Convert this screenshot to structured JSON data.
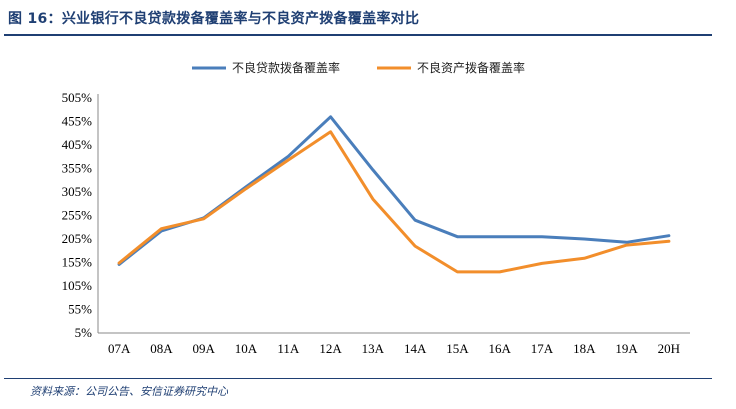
{
  "figure": {
    "title": "图 16：兴业银行不良贷款拨备覆盖率与不良资产拨备覆盖率对比",
    "source": "资料来源：公司公告、安信证券研究中心"
  },
  "colors": {
    "series1": "#4a7ebb",
    "series2": "#f28e2b",
    "rule": "#1f3f73"
  },
  "chart_data": {
    "type": "line",
    "categories": [
      "07A",
      "08A",
      "09A",
      "10A",
      "11A",
      "12A",
      "13A",
      "14A",
      "15A",
      "16A",
      "17A",
      "18A",
      "19A",
      "20H"
    ],
    "series": [
      {
        "name": "不良贷款拨备覆盖率",
        "values": [
          151,
          222,
          250,
          316,
          381,
          465,
          352,
          245,
          210,
          210,
          210,
          205,
          198,
          212
        ]
      },
      {
        "name": "不良资产拨备覆盖率",
        "values": [
          154,
          227,
          248,
          312,
          373,
          433,
          290,
          190,
          135,
          135,
          153,
          164,
          192,
          200
        ]
      }
    ],
    "yticks": [
      "5%",
      "55%",
      "105%",
      "155%",
      "205%",
      "255%",
      "305%",
      "355%",
      "405%",
      "455%",
      "505%"
    ],
    "ylim": [
      5,
      505
    ],
    "legend": "top",
    "grid": false
  }
}
